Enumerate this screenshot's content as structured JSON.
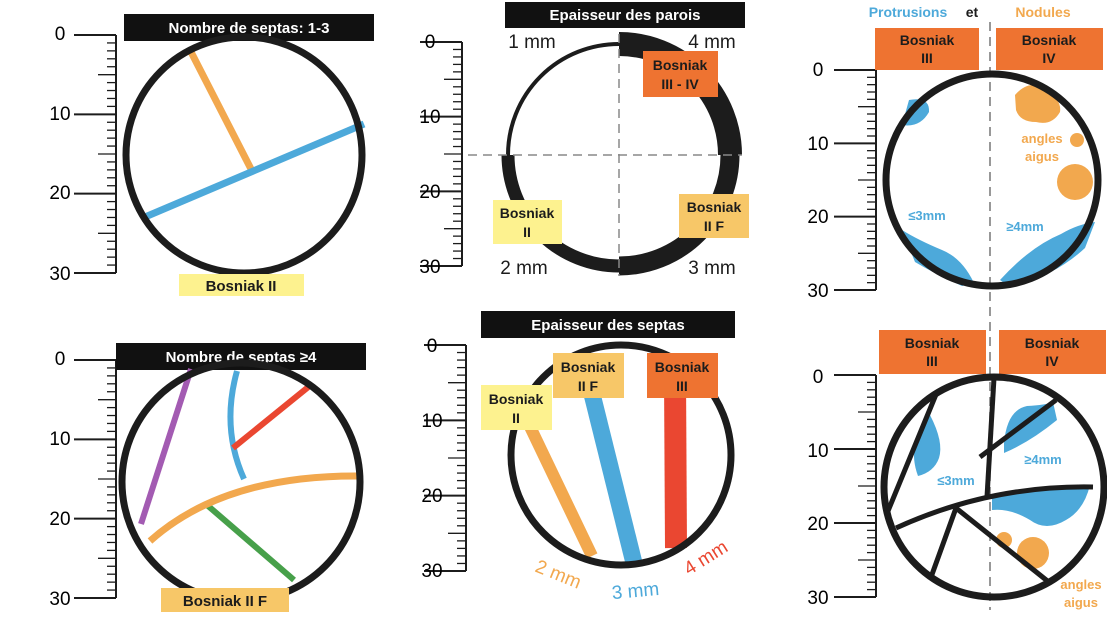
{
  "colors": {
    "black": "#1c1c1c",
    "orange": "#f2a84e",
    "blue": "#4da9da",
    "red": "#ea4731",
    "purple": "#a35bb2",
    "green": "#47a04a",
    "dark_orange": "#ee7331",
    "yellow_box": "#fdf28f",
    "light_orange_box": "#f7c768",
    "orange_box": "#ee7331",
    "thick_wall": "#242424"
  },
  "ruler_ticks": [
    "0",
    "10",
    "20",
    "30"
  ],
  "panels": {
    "septa_count_1_3": {
      "title": "Nombre de septas: 1-3",
      "class_label": "Bosniak II"
    },
    "septa_count_4_plus": {
      "title": "Nombre de septas ≥4",
      "class_label": "Bosniak II F"
    },
    "wall_thickness": {
      "title": "Epaisseur des  parois",
      "quadrants": {
        "top_left": "1 mm",
        "top_right": "4 mm",
        "bottom_left": "2 mm",
        "bottom_right": "3 mm"
      },
      "classes": {
        "top_right_line1": "Bosniak",
        "top_right_line2": "III - IV",
        "bottom_left_line1": "Bosniak",
        "bottom_left_line2": "II",
        "bottom_right_line1": "Bosniak",
        "bottom_right_line2": "II F"
      }
    },
    "septa_thickness": {
      "title": "Epaisseur des  septas",
      "classes": {
        "ii_line1": "Bosniak",
        "ii_line2": "II",
        "iif_line1": "Bosniak",
        "iif_line2": "II F",
        "iii_line1": "Bosniak",
        "iii_line2": "III"
      },
      "thickness_labels": [
        "2 mm",
        "3 mm",
        "4 mm"
      ]
    },
    "protrusions_nodules_wall": {
      "title_protrusions": "Protrusions",
      "title_and": "et",
      "title_nodules": "Nodules",
      "class_left_line1": "Bosniak",
      "class_left_line2": "III",
      "class_right_line1": "Bosniak",
      "class_right_line2": "IV",
      "angles_line1": "angles",
      "angles_line2": "aigus",
      "small_label": "≤3mm",
      "large_label": "≥4mm"
    },
    "protrusions_nodules_septa": {
      "class_left_line1": "Bosniak",
      "class_left_line2": "III",
      "class_right_line1": "Bosniak",
      "class_right_line2": "IV",
      "small_label": "≤3mm",
      "large_label": "≥4mm",
      "angles_line1": "angles",
      "angles_line2": "aigus"
    }
  }
}
